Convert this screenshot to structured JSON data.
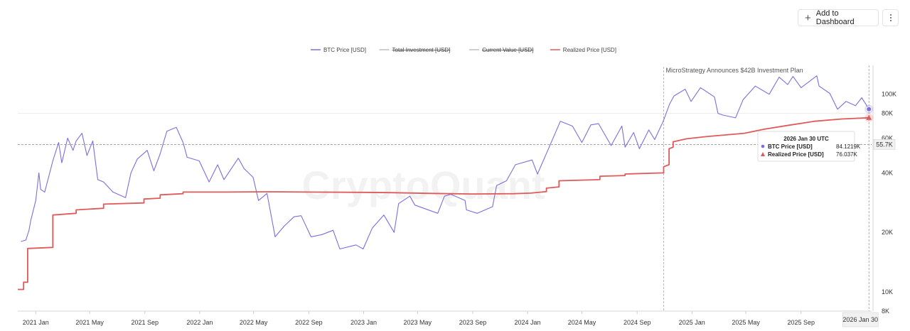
{
  "toolbar": {
    "add_label": "Add to Dashboard",
    "plus_icon": "plus-icon",
    "more_icon": "more-vertical-icon"
  },
  "chart_data": {
    "type": "line",
    "y_scale": "log",
    "ylim": [
      8000,
      140000
    ],
    "xlim": [
      "2020-11-22",
      "2026-02-05"
    ],
    "watermark": "CryptoQuant",
    "legend": [
      {
        "name": "BTC Price [USD]",
        "color": "#7b6ee0",
        "active": true
      },
      {
        "name": "Total Investment [USD]",
        "color": "#bdbdbd",
        "active": false
      },
      {
        "name": "Current Value [USD]",
        "color": "#bdbdbd",
        "active": false
      },
      {
        "name": "Realized Price [USD]",
        "color": "#e05a5a",
        "active": true
      }
    ],
    "x_ticks": [
      {
        "label": "2021 Jan",
        "date": "2021-01-01"
      },
      {
        "label": "2021 May",
        "date": "2021-05-01"
      },
      {
        "label": "2021 Sep",
        "date": "2021-09-01"
      },
      {
        "label": "2022 Jan",
        "date": "2022-01-01"
      },
      {
        "label": "2022 May",
        "date": "2022-05-01"
      },
      {
        "label": "2022 Sep",
        "date": "2022-09-01"
      },
      {
        "label": "2023 Jan",
        "date": "2023-01-01"
      },
      {
        "label": "2023 May",
        "date": "2023-05-01"
      },
      {
        "label": "2023 Sep",
        "date": "2023-09-01"
      },
      {
        "label": "2024 Jan",
        "date": "2024-01-01"
      },
      {
        "label": "2024 May",
        "date": "2024-05-01"
      },
      {
        "label": "2024 Sep",
        "date": "2024-09-01"
      },
      {
        "label": "2025 Jan",
        "date": "2025-01-01"
      },
      {
        "label": "2025 May",
        "date": "2025-05-01"
      },
      {
        "label": "2025 Sep",
        "date": "2025-09-01"
      }
    ],
    "y_ticks": [
      {
        "label": "8K",
        "value": 8000
      },
      {
        "label": "10K",
        "value": 10000
      },
      {
        "label": "20K",
        "value": 20000
      },
      {
        "label": "40K",
        "value": 40000
      },
      {
        "label": "60K",
        "value": 60000
      },
      {
        "label": "80K",
        "value": 80000
      },
      {
        "label": "100K",
        "value": 100000
      }
    ],
    "crosshair": {
      "date": "2026-01-30",
      "date_label": "2026 Jan 30",
      "value": 55700,
      "value_label": "55.7K"
    },
    "annotation": {
      "date": "2024-10-30",
      "text": "MicroStrategy Announces $42B Investment Plan"
    },
    "tooltip": {
      "title": "2026 Jan 30 UTC",
      "rows": [
        {
          "label": "BTC Price [USD]",
          "value": "84.1219K",
          "color": "#7b6ee0",
          "marker": "circle"
        },
        {
          "label": "Realized Price [USD]",
          "value": "76.037K",
          "color": "#e05a5a",
          "marker": "triangle"
        }
      ]
    },
    "series": [
      {
        "name": "BTC Price [USD]",
        "color": "#7b6ee0",
        "points": [
          [
            "2020-11-29",
            18000
          ],
          [
            "2020-12-10",
            18300
          ],
          [
            "2020-12-17",
            20500
          ],
          [
            "2020-12-21",
            23000
          ],
          [
            "2021-01-01",
            29000
          ],
          [
            "2021-01-08",
            40000
          ],
          [
            "2021-01-12",
            33000
          ],
          [
            "2021-01-21",
            32000
          ],
          [
            "2021-02-08",
            46000
          ],
          [
            "2021-02-21",
            57000
          ],
          [
            "2021-02-28",
            45000
          ],
          [
            "2021-03-13",
            60000
          ],
          [
            "2021-03-25",
            52000
          ],
          [
            "2021-04-01",
            58000
          ],
          [
            "2021-04-14",
            63500
          ],
          [
            "2021-04-25",
            49000
          ],
          [
            "2021-05-08",
            58000
          ],
          [
            "2021-05-19",
            37000
          ],
          [
            "2021-06-01",
            36000
          ],
          [
            "2021-06-22",
            32000
          ],
          [
            "2021-07-20",
            30000
          ],
          [
            "2021-08-01",
            40000
          ],
          [
            "2021-08-15",
            47000
          ],
          [
            "2021-09-06",
            52000
          ],
          [
            "2021-09-21",
            41000
          ],
          [
            "2021-10-05",
            50000
          ],
          [
            "2021-10-20",
            65000
          ],
          [
            "2021-11-10",
            68000
          ],
          [
            "2021-11-25",
            57000
          ],
          [
            "2021-12-04",
            48000
          ],
          [
            "2021-12-31",
            46000
          ],
          [
            "2022-01-22",
            36000
          ],
          [
            "2022-02-10",
            44000
          ],
          [
            "2022-02-24",
            37000
          ],
          [
            "2022-03-28",
            47500
          ],
          [
            "2022-04-10",
            42000
          ],
          [
            "2022-04-30",
            38000
          ],
          [
            "2022-05-12",
            29000
          ],
          [
            "2022-05-31",
            31500
          ],
          [
            "2022-06-18",
            19000
          ],
          [
            "2022-07-08",
            21500
          ],
          [
            "2022-07-30",
            24000
          ],
          [
            "2022-08-15",
            24300
          ],
          [
            "2022-09-06",
            19000
          ],
          [
            "2022-09-30",
            19500
          ],
          [
            "2022-10-25",
            20500
          ],
          [
            "2022-11-09",
            16500
          ],
          [
            "2022-12-15",
            17300
          ],
          [
            "2022-12-31",
            16500
          ],
          [
            "2023-01-20",
            21000
          ],
          [
            "2023-02-15",
            24500
          ],
          [
            "2023-03-10",
            20000
          ],
          [
            "2023-03-20",
            28000
          ],
          [
            "2023-04-14",
            30500
          ],
          [
            "2023-04-25",
            27500
          ],
          [
            "2023-06-15",
            25000
          ],
          [
            "2023-06-30",
            30500
          ],
          [
            "2023-07-14",
            31200
          ],
          [
            "2023-08-15",
            29000
          ],
          [
            "2023-08-18",
            26000
          ],
          [
            "2023-09-11",
            25000
          ],
          [
            "2023-10-15",
            27000
          ],
          [
            "2023-10-24",
            34500
          ],
          [
            "2023-11-15",
            36500
          ],
          [
            "2023-12-05",
            44000
          ],
          [
            "2024-01-11",
            46500
          ],
          [
            "2024-01-23",
            39500
          ],
          [
            "2024-02-15",
            52000
          ],
          [
            "2024-03-14",
            73000
          ],
          [
            "2024-04-10",
            69000
          ],
          [
            "2024-05-01",
            57000
          ],
          [
            "2024-05-21",
            70000
          ],
          [
            "2024-06-07",
            71000
          ],
          [
            "2024-07-05",
            55000
          ],
          [
            "2024-07-29",
            69000
          ],
          [
            "2024-08-05",
            54000
          ],
          [
            "2024-08-24",
            64000
          ],
          [
            "2024-09-06",
            53000
          ],
          [
            "2024-09-27",
            66000
          ],
          [
            "2024-10-10",
            59000
          ],
          [
            "2024-10-29",
            73000
          ],
          [
            "2024-11-12",
            89000
          ],
          [
            "2024-11-22",
            98000
          ],
          [
            "2024-12-17",
            106000
          ],
          [
            "2024-12-30",
            92000
          ],
          [
            "2025-01-20",
            108000
          ],
          [
            "2025-02-20",
            97000
          ],
          [
            "2025-02-28",
            80000
          ],
          [
            "2025-03-10",
            78500
          ],
          [
            "2025-04-08",
            76000
          ],
          [
            "2025-04-25",
            94000
          ],
          [
            "2025-05-22",
            110000
          ],
          [
            "2025-06-22",
            100000
          ],
          [
            "2025-07-14",
            122000
          ],
          [
            "2025-08-02",
            112000
          ],
          [
            "2025-08-14",
            123000
          ],
          [
            "2025-09-01",
            108000
          ],
          [
            "2025-10-06",
            124000
          ],
          [
            "2025-10-11",
            110000
          ],
          [
            "2025-11-04",
            101000
          ],
          [
            "2025-11-21",
            84000
          ],
          [
            "2025-12-10",
            92000
          ],
          [
            "2025-12-31",
            87500
          ],
          [
            "2026-01-14",
            96000
          ],
          [
            "2026-01-30",
            84121.9
          ]
        ]
      },
      {
        "name": "Realized Price [USD]",
        "color": "#e05a5a",
        "points": [
          [
            "2020-11-22",
            10300
          ],
          [
            "2020-12-05",
            10300
          ],
          [
            "2020-12-05",
            11200
          ],
          [
            "2020-12-14",
            11200
          ],
          [
            "2020-12-14",
            16600
          ],
          [
            "2021-02-08",
            16800
          ],
          [
            "2021-02-08",
            24500
          ],
          [
            "2021-04-01",
            25000
          ],
          [
            "2021-04-01",
            26000
          ],
          [
            "2021-06-01",
            26500
          ],
          [
            "2021-06-01",
            27800
          ],
          [
            "2021-08-30",
            28200
          ],
          [
            "2021-08-30",
            29500
          ],
          [
            "2021-10-05",
            29800
          ],
          [
            "2021-10-05",
            31000
          ],
          [
            "2021-11-25",
            31400
          ],
          [
            "2021-11-25",
            32000
          ],
          [
            "2022-03-01",
            32000
          ],
          [
            "2022-06-01",
            32100
          ],
          [
            "2022-09-01",
            32000
          ],
          [
            "2022-12-31",
            31900
          ],
          [
            "2023-03-01",
            31800
          ],
          [
            "2023-06-01",
            31500
          ],
          [
            "2023-09-01",
            31300
          ],
          [
            "2023-12-01",
            31400
          ],
          [
            "2024-01-08",
            31600
          ],
          [
            "2024-02-12",
            32200
          ],
          [
            "2024-02-12",
            33500
          ],
          [
            "2024-03-11",
            34000
          ],
          [
            "2024-03-11",
            36500
          ],
          [
            "2024-06-10",
            37000
          ],
          [
            "2024-06-10",
            38500
          ],
          [
            "2024-08-05",
            38800
          ],
          [
            "2024-08-05",
            39500
          ],
          [
            "2024-10-30",
            40000
          ],
          [
            "2024-10-30",
            43000
          ],
          [
            "2024-11-11",
            44000
          ],
          [
            "2024-11-11",
            53000
          ],
          [
            "2024-11-20",
            54000
          ],
          [
            "2024-11-20",
            57500
          ],
          [
            "2024-12-20",
            59500
          ],
          [
            "2025-02-01",
            61000
          ],
          [
            "2025-04-28",
            63500
          ],
          [
            "2025-06-10",
            66500
          ],
          [
            "2025-08-01",
            69500
          ],
          [
            "2025-10-01",
            73000
          ],
          [
            "2025-12-01",
            75000
          ],
          [
            "2026-01-30",
            76037
          ]
        ]
      }
    ]
  }
}
